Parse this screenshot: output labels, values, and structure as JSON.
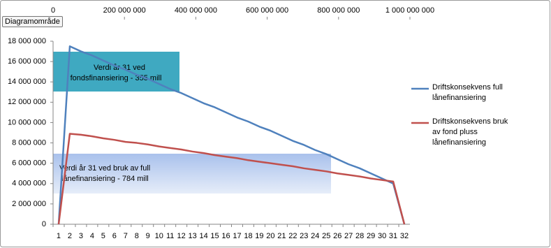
{
  "chart_data": {
    "type": "line",
    "tooltip": "Diagramområde",
    "categories": [
      1,
      2,
      3,
      4,
      5,
      6,
      7,
      8,
      9,
      10,
      11,
      12,
      13,
      14,
      15,
      16,
      17,
      18,
      19,
      20,
      21,
      22,
      23,
      24,
      25,
      26,
      27,
      28,
      29,
      30,
      31,
      32
    ],
    "series": [
      {
        "name": "Driftskonsekvens full lånefinansiering",
        "color": "#4f81bd",
        "values": [
          0,
          17500000,
          17000000,
          16600000,
          16100000,
          15600000,
          15200000,
          14700000,
          14300000,
          13800000,
          13300000,
          12900000,
          12400000,
          11900000,
          11500000,
          11000000,
          10500000,
          10100000,
          9600000,
          9200000,
          8700000,
          8200000,
          7800000,
          7300000,
          6900000,
          6400000,
          5900000,
          5500000,
          5000000,
          4500000,
          4000000,
          0
        ]
      },
      {
        "name": "Driftskonsekvens bruk av fond pluss lånefinansiering",
        "color": "#c0504d",
        "values": [
          0,
          8900000,
          8800000,
          8650000,
          8450000,
          8300000,
          8100000,
          8000000,
          7850000,
          7650000,
          7500000,
          7350000,
          7150000,
          7000000,
          6800000,
          6650000,
          6500000,
          6300000,
          6150000,
          6000000,
          5850000,
          5700000,
          5500000,
          5350000,
          5200000,
          5000000,
          4850000,
          4700000,
          4500000,
          4350000,
          4200000,
          0
        ]
      }
    ],
    "ylim": [
      0,
      18000000
    ],
    "yticks": [
      0,
      {
        "value": 2000000,
        "label": "2 000 000"
      },
      {
        "value": 4000000,
        "label": "4 000 000"
      },
      {
        "value": 6000000,
        "label": "6 000 000"
      },
      {
        "value": 8000000,
        "label": "8 000 000"
      },
      {
        "value": 10000000,
        "label": "10 000 000"
      },
      {
        "value": 12000000,
        "label": "12 000 000"
      },
      {
        "value": 14000000,
        "label": "14 000 000"
      },
      {
        "value": 16000000,
        "label": "16 000 000"
      },
      {
        "value": 18000000,
        "label": "18 000 000"
      }
    ],
    "x2lim": [
      0,
      1000000000
    ],
    "x2ticks": [
      0,
      {
        "value": 200000000,
        "label": "200 000 000"
      },
      {
        "value": 400000000,
        "label": "400 000 000"
      },
      {
        "value": 600000000,
        "label": "600 000 000"
      },
      {
        "value": 800000000,
        "label": "800 000 000"
      },
      {
        "value": 1000000000,
        "label": "1 000 000 000"
      }
    ],
    "annotations": [
      [
        "Verdi år 31 ved",
        "fondsfinansiering - 355 mill"
      ],
      [
        "Verdi år 31 ved bruk av full",
        "lånefinansiering - 784 mill"
      ]
    ],
    "grid": false
  }
}
